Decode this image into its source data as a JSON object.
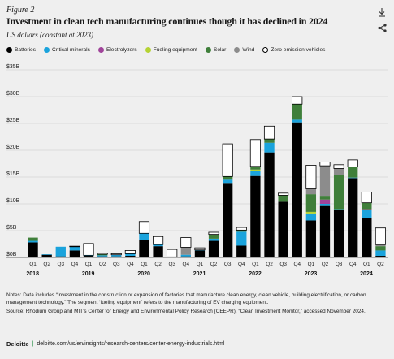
{
  "header": {
    "figure_label": "Figure 2",
    "title": "Investment in clean tech manufacturing continues though it has declined in 2024",
    "subtitle": "US dollars (constant at 2023)",
    "download_icon": "download-icon",
    "share_icon": "share-icon"
  },
  "legend": [
    {
      "label": "Batteries",
      "color": "#000000"
    },
    {
      "label": "Critical minerals",
      "color": "#1aa3dc"
    },
    {
      "label": "Electrolyzers",
      "color": "#a0449a"
    },
    {
      "label": "Fueling equipment",
      "color": "#b5d334"
    },
    {
      "label": "Solar",
      "color": "#3f7f3a"
    },
    {
      "label": "Wind",
      "color": "#8c8c8c"
    },
    {
      "label": "Zero emission vehicles",
      "color": "#ffffff"
    }
  ],
  "chart_data": {
    "type": "bar",
    "stacked": true,
    "ylim": [
      0,
      35
    ],
    "ytick_labels": [
      "$0B",
      "$5B",
      "$10B",
      "$15B",
      "$20B",
      "$25B",
      "$30B",
      "$35B"
    ],
    "yticks": [
      0,
      5,
      10,
      15,
      20,
      25,
      30,
      35
    ],
    "categories": [
      "Q1",
      "Q2",
      "Q3",
      "Q4",
      "Q1",
      "Q2",
      "Q3",
      "Q4",
      "Q1",
      "Q2",
      "Q3",
      "Q4",
      "Q1",
      "Q2",
      "Q3",
      "Q4",
      "Q1",
      "Q2",
      "Q3",
      "Q4",
      "Q1",
      "Q2",
      "Q3",
      "Q4",
      "Q1",
      "Q2"
    ],
    "year_labels": [
      {
        "year": "2018",
        "index": 0
      },
      {
        "year": "2019",
        "index": 4
      },
      {
        "year": "2020",
        "index": 8
      },
      {
        "year": "2021",
        "index": 12
      },
      {
        "year": "2022",
        "index": 16
      },
      {
        "year": "2023",
        "index": 20
      },
      {
        "year": "2024",
        "index": 24
      }
    ],
    "series": [
      {
        "name": "Batteries",
        "color": "#000000",
        "values": [
          2.8,
          0.5,
          0.2,
          1.3,
          0.3,
          0.2,
          0.2,
          0.3,
          3.2,
          2.1,
          0.1,
          0.2,
          1.3,
          3.1,
          13.9,
          2.2,
          15.2,
          19.6,
          10.4,
          25.2,
          6.9,
          9.6,
          8.9,
          14.8,
          7.4,
          0.3
        ]
      },
      {
        "name": "Critical minerals",
        "color": "#1aa3dc",
        "values": [
          0.3,
          0.1,
          1.8,
          0.7,
          0.1,
          0.2,
          0.3,
          0.4,
          1.3,
          0.3,
          0.0,
          0.3,
          0.1,
          0.4,
          0.6,
          2.6,
          1.0,
          1.8,
          0.0,
          0.5,
          1.3,
          0.4,
          0.1,
          0.1,
          1.5,
          1.0
        ]
      },
      {
        "name": "Electrolyzers",
        "color": "#a0449a",
        "values": [
          0,
          0,
          0,
          0,
          0,
          0,
          0,
          0,
          0,
          0,
          0,
          0,
          0,
          0,
          0,
          0,
          0,
          0,
          0,
          0,
          0,
          0.8,
          0,
          0,
          0.1,
          0
        ]
      },
      {
        "name": "Fueling equipment",
        "color": "#b5d334",
        "values": [
          0,
          0,
          0,
          0,
          0,
          0,
          0,
          0,
          0,
          0,
          0,
          0,
          0,
          0,
          0,
          0,
          0.2,
          0,
          0,
          0,
          0.3,
          0,
          0,
          0,
          0,
          0
        ]
      },
      {
        "name": "Solar",
        "color": "#3f7f3a",
        "values": [
          0.6,
          0,
          0,
          0,
          0,
          0.2,
          0,
          0,
          0,
          0,
          0,
          0,
          0,
          0.8,
          0.6,
          0.3,
          0.6,
          0.7,
          1.2,
          2.9,
          3.3,
          0.7,
          6.4,
          2.0,
          1.2,
          0.8
        ]
      },
      {
        "name": "Wind",
        "color": "#8c8c8c",
        "values": [
          0,
          0,
          0,
          0,
          0,
          0,
          0,
          0,
          0,
          0,
          0,
          1.4,
          0,
          0,
          0,
          0,
          0,
          0,
          0,
          0,
          1.0,
          5.6,
          1.2,
          0,
          0,
          0.3
        ]
      },
      {
        "name": "Zero emission vehicles",
        "color": "#ffffff",
        "values": [
          0,
          0,
          0,
          0.1,
          2.2,
          0.2,
          0.2,
          0.6,
          2.2,
          1.5,
          1.4,
          1.8,
          0.4,
          0.4,
          6.1,
          0.5,
          5.0,
          2.4,
          0.4,
          1.4,
          4.4,
          0.7,
          0.7,
          1.3,
          2.0,
          3.1
        ]
      }
    ]
  },
  "notes": {
    "note": "Notes: Data includes “Investment in the construction or expansion of factories that manufacture clean energy, clean vehicle, building electrification, or carbon management technology.” The segment ‘fueling equipment’ refers to the manufacturing of EV charging equipment.",
    "source": "Source: Rhodium Group and MIT’s Center for Energy and Environmental Policy Research (CEEPR), “Clean Investment Monitor,” accessed November 2024."
  },
  "footer": {
    "brand": "Deloitte",
    "separator": "|",
    "url": "deloitte.com/us/en/insights/research-centers/center-energy-industrials.html"
  }
}
